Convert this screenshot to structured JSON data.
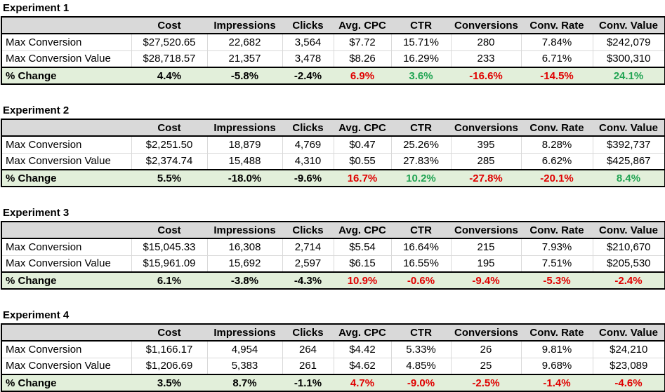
{
  "colors": {
    "black": "#000000",
    "red": "#e00000",
    "green": "#21a453",
    "header_bg": "#d9d9d9",
    "change_bg": "#e2efda"
  },
  "chart_data": [
    {
      "type": "table",
      "title": "Experiment 1",
      "columns": [
        "",
        "Cost",
        "Impressions",
        "Clicks",
        "Avg. CPC",
        "CTR",
        "Conversions",
        "Conv. Rate",
        "Conv. Value"
      ],
      "rows": [
        {
          "label": "Max Conversion",
          "values": [
            "$27,520.65",
            "22,682",
            "3,564",
            "$7.72",
            "15.71%",
            "280",
            "7.84%",
            "$242,079"
          ]
        },
        {
          "label": "Max Conversion Value",
          "values": [
            "$28,718.57",
            "21,357",
            "3,478",
            "$8.26",
            "16.29%",
            "233",
            "6.71%",
            "$300,310"
          ]
        }
      ],
      "change_row": {
        "label": "% Change",
        "values": [
          {
            "text": "4.4%",
            "color": "black"
          },
          {
            "text": "-5.8%",
            "color": "black"
          },
          {
            "text": "-2.4%",
            "color": "black"
          },
          {
            "text": "6.9%",
            "color": "red"
          },
          {
            "text": "3.6%",
            "color": "green"
          },
          {
            "text": "-16.6%",
            "color": "red"
          },
          {
            "text": "-14.5%",
            "color": "red"
          },
          {
            "text": "24.1%",
            "color": "green"
          }
        ]
      }
    },
    {
      "type": "table",
      "title": "Experiment 2",
      "columns": [
        "",
        "Cost",
        "Impressions",
        "Clicks",
        "Avg. CPC",
        "CTR",
        "Conversions",
        "Conv. Rate",
        "Conv. Value"
      ],
      "rows": [
        {
          "label": "Max Conversion",
          "values": [
            "$2,251.50",
            "18,879",
            "4,769",
            "$0.47",
            "25.26%",
            "395",
            "8.28%",
            "$392,737"
          ]
        },
        {
          "label": "Max Conversion Value",
          "values": [
            "$2,374.74",
            "15,488",
            "4,310",
            "$0.55",
            "27.83%",
            "285",
            "6.62%",
            "$425,867"
          ]
        }
      ],
      "change_row": {
        "label": "% Change",
        "values": [
          {
            "text": "5.5%",
            "color": "black"
          },
          {
            "text": "-18.0%",
            "color": "black"
          },
          {
            "text": "-9.6%",
            "color": "black"
          },
          {
            "text": "16.7%",
            "color": "red"
          },
          {
            "text": "10.2%",
            "color": "green"
          },
          {
            "text": "-27.8%",
            "color": "red"
          },
          {
            "text": "-20.1%",
            "color": "red"
          },
          {
            "text": "8.4%",
            "color": "green"
          }
        ]
      }
    },
    {
      "type": "table",
      "title": "Experiment 3",
      "columns": [
        "",
        "Cost",
        "Impressions",
        "Clicks",
        "Avg. CPC",
        "CTR",
        "Conversions",
        "Conv. Rate",
        "Conv. Value"
      ],
      "rows": [
        {
          "label": "Max Conversion",
          "values": [
            "$15,045.33",
            "16,308",
            "2,714",
            "$5.54",
            "16.64%",
            "215",
            "7.93%",
            "$210,670"
          ]
        },
        {
          "label": "Max Conversion Value",
          "values": [
            "$15,961.09",
            "15,692",
            "2,597",
            "$6.15",
            "16.55%",
            "195",
            "7.51%",
            "$205,530"
          ]
        }
      ],
      "change_row": {
        "label": "% Change",
        "values": [
          {
            "text": "6.1%",
            "color": "black"
          },
          {
            "text": "-3.8%",
            "color": "black"
          },
          {
            "text": "-4.3%",
            "color": "black"
          },
          {
            "text": "10.9%",
            "color": "red"
          },
          {
            "text": "-0.6%",
            "color": "red"
          },
          {
            "text": "-9.4%",
            "color": "red"
          },
          {
            "text": "-5.3%",
            "color": "red"
          },
          {
            "text": "-2.4%",
            "color": "red"
          }
        ]
      }
    },
    {
      "type": "table",
      "title": "Experiment 4",
      "columns": [
        "",
        "Cost",
        "Impressions",
        "Clicks",
        "Avg. CPC",
        "CTR",
        "Conversions",
        "Conv. Rate",
        "Conv. Value"
      ],
      "rows": [
        {
          "label": "Max Conversion",
          "values": [
            "$1,166.17",
            "4,954",
            "264",
            "$4.42",
            "5.33%",
            "26",
            "9.81%",
            "$24,210"
          ]
        },
        {
          "label": "Max Conversion Value",
          "values": [
            "$1,206.69",
            "5,383",
            "261",
            "$4.62",
            "4.85%",
            "25",
            "9.68%",
            "$23,089"
          ]
        }
      ],
      "change_row": {
        "label": "% Change",
        "values": [
          {
            "text": "3.5%",
            "color": "black"
          },
          {
            "text": "8.7%",
            "color": "black"
          },
          {
            "text": "-1.1%",
            "color": "black"
          },
          {
            "text": "4.7%",
            "color": "red"
          },
          {
            "text": "-9.0%",
            "color": "red"
          },
          {
            "text": "-2.5%",
            "color": "red"
          },
          {
            "text": "-1.4%",
            "color": "red"
          },
          {
            "text": "-4.6%",
            "color": "red"
          }
        ]
      }
    }
  ]
}
